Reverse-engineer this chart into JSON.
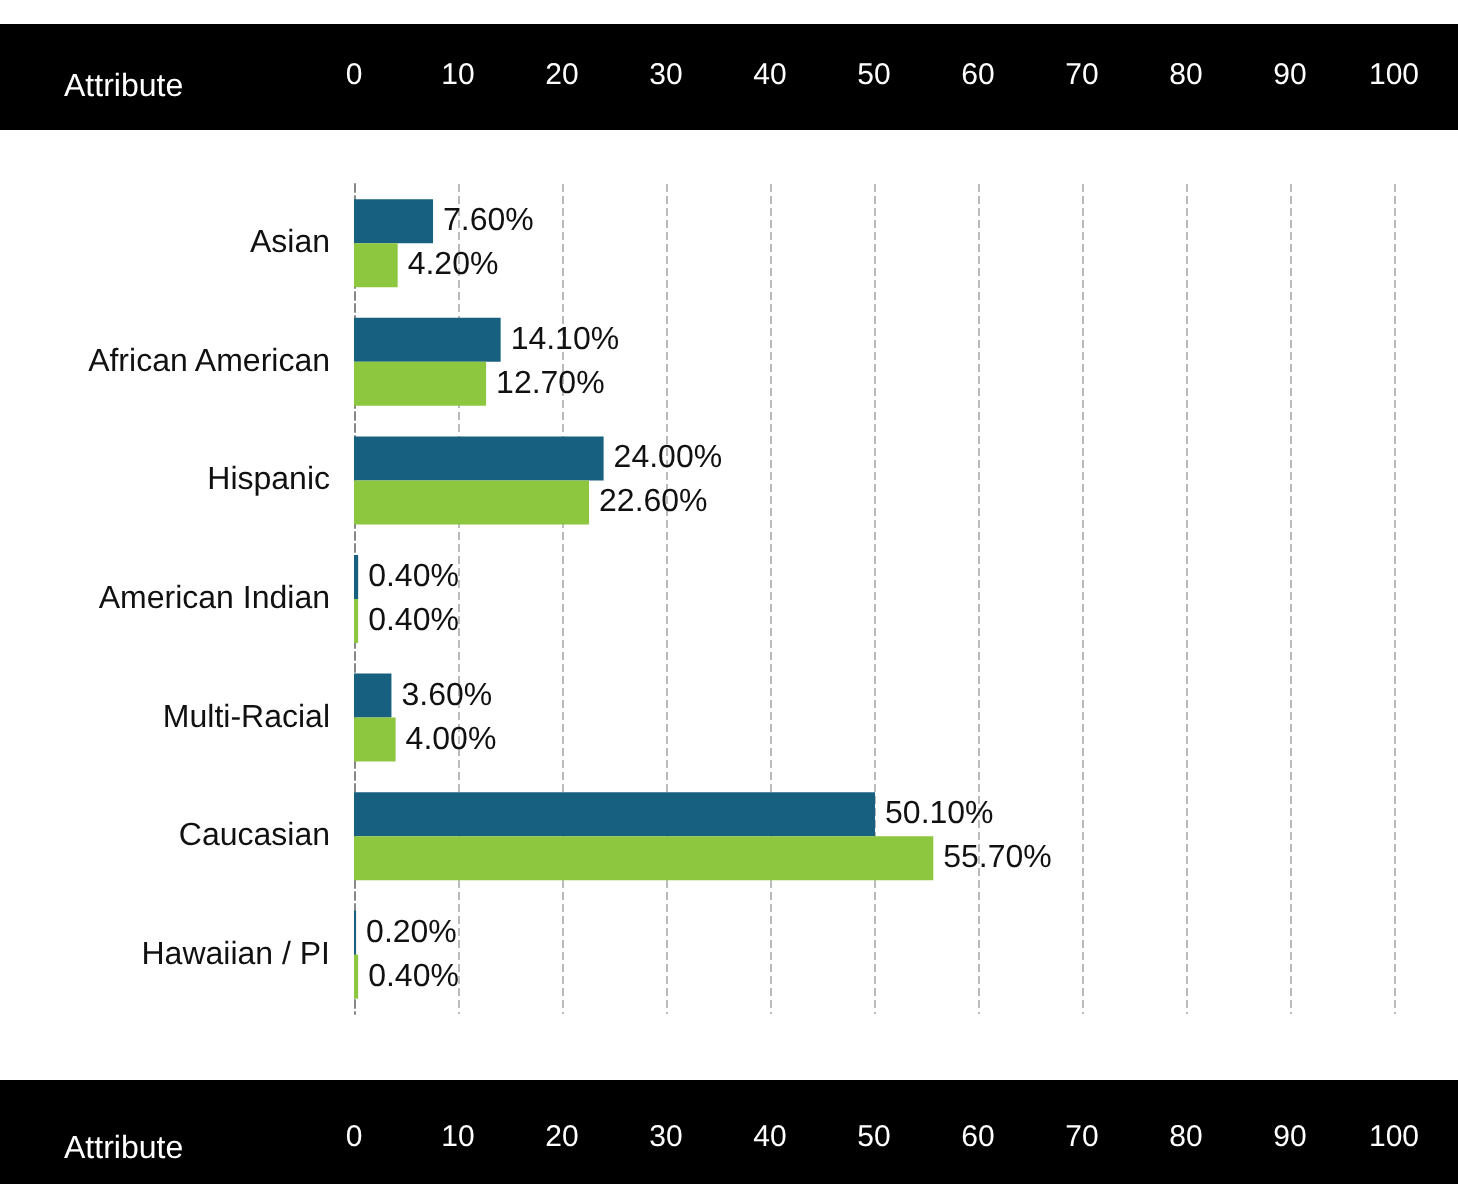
{
  "chart_data": {
    "type": "bar",
    "orientation": "horizontal",
    "ylabel": "Attribute",
    "categories": [
      "Asian",
      "African American",
      "Hispanic",
      "American Indian",
      "Multi-Racial",
      "Caucasian",
      "Hawaiian / PI"
    ],
    "series": [
      {
        "color": "#17607f",
        "values": [
          7.6,
          14.1,
          24.0,
          0.4,
          3.6,
          50.1,
          0.2
        ],
        "value_labels": [
          "7.60%",
          "14.10%",
          "24.00%",
          "0.40%",
          "3.60%",
          "50.10%",
          "0.20%"
        ]
      },
      {
        "color": "#8dc63f",
        "values": [
          4.2,
          12.7,
          22.6,
          0.4,
          4.0,
          55.7,
          0.4
        ],
        "value_labels": [
          "4.20%",
          "12.70%",
          "22.60%",
          "0.40%",
          "4.00%",
          "55.70%",
          "0.40%"
        ]
      }
    ],
    "xlim": [
      0,
      100
    ],
    "xticks": [
      0,
      10,
      20,
      30,
      40,
      50,
      60,
      70,
      80,
      90,
      100
    ],
    "x2lim": [
      0,
      100
    ],
    "x2ticks": [
      0,
      10,
      20,
      30,
      40,
      50,
      60,
      70,
      80,
      90,
      100
    ],
    "grid": "x"
  }
}
